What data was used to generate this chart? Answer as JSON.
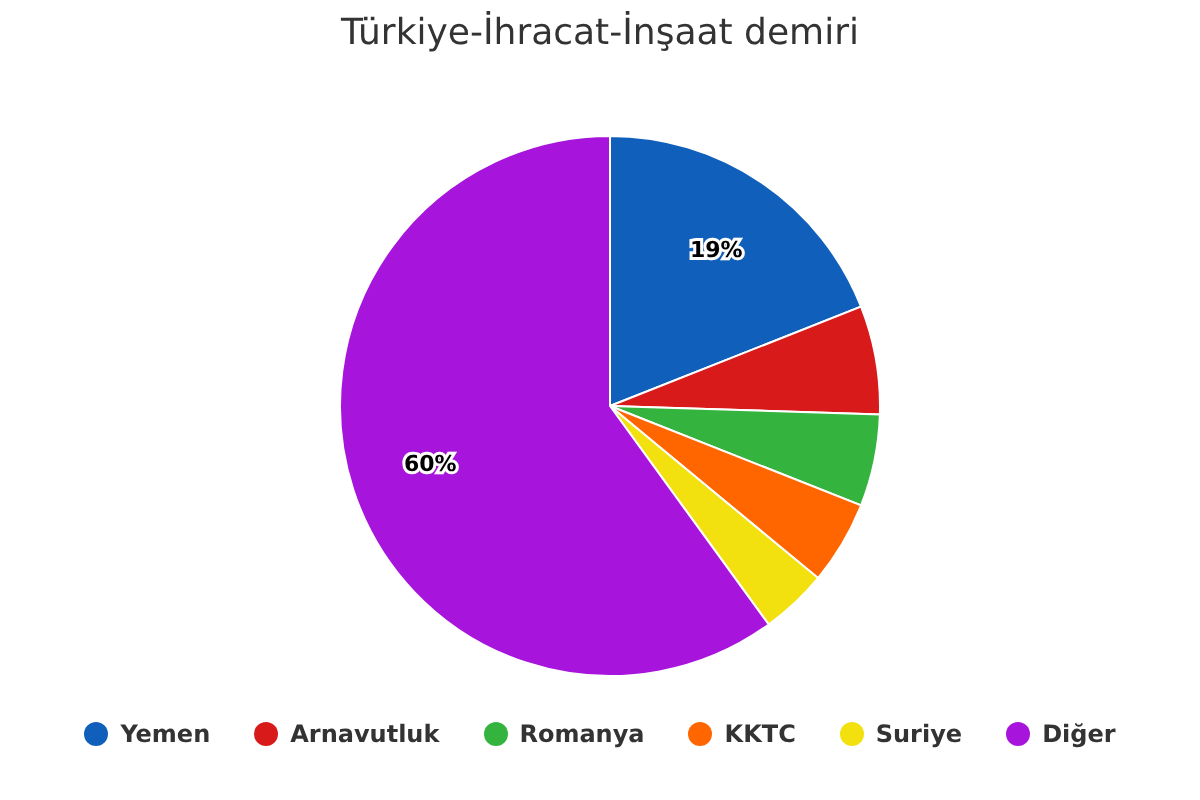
{
  "chart_data": {
    "type": "pie",
    "title": "Türkiye-İhracat-İnşaat demiri",
    "categories": [
      "Yemen",
      "Arnavutluk",
      "Romanya",
      "KKTC",
      "Suriye",
      "Diğer"
    ],
    "values": [
      19,
      6.5,
      5.5,
      5,
      4,
      60
    ],
    "colors": [
      "#1060bb",
      "#d81a1a",
      "#35b33f",
      "#ff6600",
      "#f2e10e",
      "#a715dd"
    ],
    "value_labels": [
      "19%",
      null,
      null,
      null,
      null,
      "60%"
    ],
    "legend": "bottom"
  }
}
